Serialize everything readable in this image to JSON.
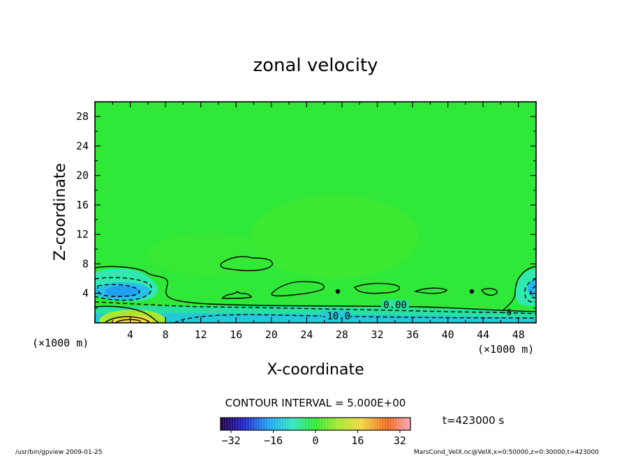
{
  "chart_data": {
    "type": "contour",
    "title": "zonal velocity",
    "xlabel": "X-coordinate",
    "ylabel": "Z-coordinate",
    "x_unit_label": "(×1000 m)",
    "z_unit_label": "(×1000 m)",
    "xlim": [
      0,
      50
    ],
    "ylim": [
      0,
      30
    ],
    "x_ticks": [
      "4",
      "8",
      "12",
      "16",
      "20",
      "24",
      "28",
      "32",
      "36",
      "40",
      "44",
      "48"
    ],
    "y_ticks": [
      "4",
      "8",
      "12",
      "16",
      "20",
      "24",
      "28"
    ],
    "x_tick_values": [
      4,
      8,
      12,
      16,
      20,
      24,
      28,
      32,
      36,
      40,
      44,
      48
    ],
    "y_tick_values": [
      4,
      8,
      12,
      16,
      20,
      24,
      28
    ],
    "contour_labels": [
      "0.00",
      "-10.0",
      "-5"
    ],
    "contour_interval_text": "CONTOUR INTERVAL = 5.000E+00",
    "colorbar_ticks": [
      "−32",
      "−16",
      "0",
      "16",
      "32"
    ],
    "colorbar_tick_values": [
      -32,
      -16,
      0,
      16,
      32
    ],
    "colorbar_range": [
      -36,
      36
    ],
    "time_label": "t=423000 s",
    "background_color": "#2ee82e"
  },
  "footer": {
    "left": "/usr/bin/gpview  2009-01-25",
    "right": "MarsCond_VelX.nc@VelX,x=0:50000,z=0:30000,t=423000"
  }
}
